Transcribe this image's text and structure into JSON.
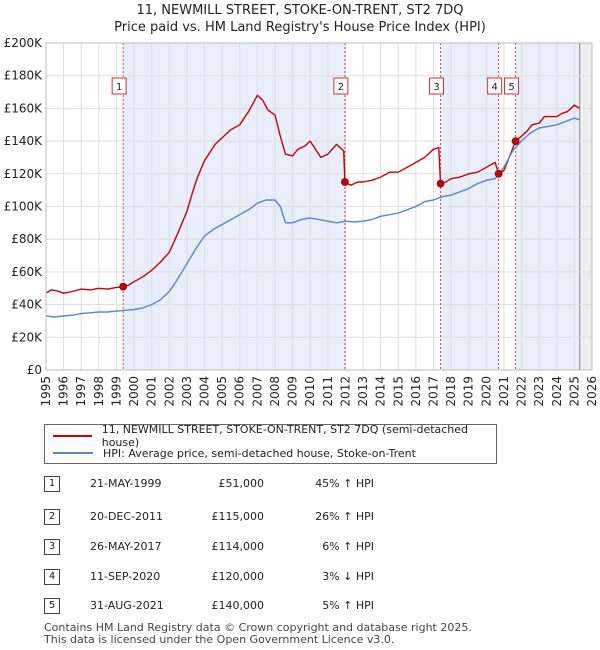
{
  "title_line1": "11, NEWMILL STREET, STOKE-ON-TRENT, ST2 7DQ",
  "title_line2": "Price paid vs. HM Land Registry's House Price Index (HPI)",
  "chart_data": {
    "type": "line",
    "x_range": [
      1995,
      2026
    ],
    "ylim": [
      0,
      200000
    ],
    "y_ticks": [
      0,
      20000,
      40000,
      60000,
      80000,
      100000,
      120000,
      140000,
      160000,
      180000,
      200000
    ],
    "y_tick_labels": [
      "£0",
      "£20K",
      "£40K",
      "£60K",
      "£80K",
      "£100K",
      "£120K",
      "£140K",
      "£160K",
      "£180K",
      "£200K"
    ],
    "x_ticks": [
      1995,
      1996,
      1997,
      1998,
      1999,
      2000,
      2001,
      2002,
      2003,
      2004,
      2005,
      2006,
      2007,
      2008,
      2009,
      2010,
      2011,
      2012,
      2013,
      2014,
      2015,
      2016,
      2017,
      2018,
      2019,
      2020,
      2021,
      2022,
      2023,
      2024,
      2025,
      2026
    ],
    "x_tick_labels": [
      "1995",
      "1996",
      "1997",
      "1998",
      "1999",
      "2000",
      "2001",
      "2002",
      "2003",
      "2004",
      "2005",
      "2006",
      "2007",
      "2008",
      "2009",
      "2010",
      "2011",
      "2012",
      "2013",
      "2014",
      "2015",
      "2016",
      "2017",
      "2018",
      "2019",
      "2020",
      "2021",
      "2022",
      "2023",
      "2024",
      "2025",
      "2026"
    ],
    "shaded_ranges": [
      [
        1999.38,
        2011.97
      ],
      [
        2017.4,
        2020.7
      ],
      [
        2021.66,
        2025.3
      ]
    ],
    "forecast_start": 2025.3,
    "series": [
      {
        "name": "11, NEWMILL STREET, STOKE-ON-TRENT, ST2 7DQ (semi-detached house)",
        "color": "#cc0000",
        "x": [
          1995.0,
          1995.3,
          1995.6,
          1996.0,
          1996.5,
          1997.0,
          1997.5,
          1998.0,
          1998.5,
          1999.0,
          1999.38,
          1999.7,
          2000.0,
          2000.5,
          2001.0,
          2001.5,
          2002.0,
          2002.5,
          2003.0,
          2003.3,
          2003.6,
          2004.0,
          2004.3,
          2004.6,
          2005.0,
          2005.5,
          2006.0,
          2006.5,
          2007.0,
          2007.3,
          2007.6,
          2008.0,
          2008.3,
          2008.6,
          2009.0,
          2009.3,
          2009.7,
          2010.0,
          2010.3,
          2010.6,
          2011.0,
          2011.5,
          2011.9,
          2011.97,
          2012.3,
          2012.7,
          2013.0,
          2013.5,
          2014.0,
          2014.5,
          2015.0,
          2015.5,
          2016.0,
          2016.5,
          2017.0,
          2017.3,
          2017.4,
          2017.7,
          2018.0,
          2018.5,
          2019.0,
          2019.5,
          2020.0,
          2020.5,
          2020.7,
          2021.0,
          2021.3,
          2021.66,
          2022.0,
          2022.3,
          2022.6,
          2023.0,
          2023.3,
          2023.6,
          2024.0,
          2024.3,
          2024.6,
          2025.0,
          2025.3
        ],
        "y": [
          47000,
          49000,
          48500,
          47000,
          48000,
          49500,
          49000,
          50000,
          49500,
          50500,
          51000,
          52000,
          54000,
          57000,
          61000,
          66000,
          72000,
          84000,
          97000,
          108000,
          118000,
          128000,
          133000,
          138000,
          142000,
          147000,
          150000,
          158000,
          168000,
          165000,
          159000,
          156000,
          143000,
          132000,
          131000,
          135000,
          137000,
          140000,
          135000,
          130000,
          132000,
          138000,
          134000,
          115000,
          113000,
          115000,
          115000,
          116000,
          118000,
          121000,
          121000,
          124000,
          127000,
          130000,
          135000,
          136000,
          114000,
          115000,
          117000,
          118000,
          120000,
          121000,
          124000,
          127000,
          120000,
          122000,
          130000,
          140000,
          143000,
          146000,
          150000,
          151000,
          155000,
          155000,
          155000,
          157000,
          158000,
          162000,
          160000
        ]
      },
      {
        "name": "HPI: Average price, semi-detached house, Stoke-on-Trent",
        "color": "#5588cc",
        "x": [
          1995.0,
          1995.5,
          1996.0,
          1996.5,
          1997.0,
          1997.5,
          1998.0,
          1998.5,
          1999.0,
          1999.5,
          2000.0,
          2000.5,
          2001.0,
          2001.5,
          2002.0,
          2002.5,
          2003.0,
          2003.5,
          2004.0,
          2004.5,
          2005.0,
          2005.5,
          2006.0,
          2006.5,
          2007.0,
          2007.5,
          2008.0,
          2008.3,
          2008.6,
          2009.0,
          2009.5,
          2010.0,
          2010.5,
          2011.0,
          2011.5,
          2012.0,
          2012.5,
          2013.0,
          2013.5,
          2014.0,
          2014.5,
          2015.0,
          2015.5,
          2016.0,
          2016.5,
          2017.0,
          2017.5,
          2018.0,
          2018.5,
          2019.0,
          2019.5,
          2020.0,
          2020.5,
          2021.0,
          2021.5,
          2022.0,
          2022.5,
          2023.0,
          2023.5,
          2024.0,
          2024.5,
          2025.0,
          2025.3
        ],
        "y": [
          33000,
          32500,
          33000,
          33500,
          34500,
          35000,
          35500,
          35500,
          36000,
          36500,
          37000,
          38000,
          40000,
          43000,
          48000,
          56000,
          65000,
          74000,
          82000,
          86000,
          89000,
          92000,
          95000,
          98000,
          102000,
          104000,
          104000,
          100000,
          90000,
          90000,
          92000,
          93000,
          92000,
          91000,
          90000,
          91000,
          90500,
          91000,
          92000,
          94000,
          95000,
          96000,
          98000,
          100000,
          103000,
          104000,
          106000,
          107000,
          109000,
          111000,
          114000,
          116000,
          117000,
          124000,
          134000,
          140000,
          145000,
          148000,
          149000,
          150000,
          152000,
          154000,
          153000
        ]
      }
    ],
    "sales": [
      {
        "label": "1",
        "x": 1999.38,
        "y": 51000
      },
      {
        "label": "2",
        "x": 2011.97,
        "y": 115000
      },
      {
        "label": "3",
        "x": 2017.4,
        "y": 114000
      },
      {
        "label": "4",
        "x": 2020.7,
        "y": 120000
      },
      {
        "label": "5",
        "x": 2021.66,
        "y": 140000
      }
    ]
  },
  "legend": {
    "property": "11, NEWMILL STREET, STOKE-ON-TRENT, ST2 7DQ (semi-detached house)",
    "hpi": "HPI: Average price, semi-detached house, Stoke-on-Trent",
    "property_color": "#cc0000",
    "hpi_color": "#5588cc"
  },
  "sales_table": [
    {
      "num": "1",
      "date": "21-MAY-1999",
      "price": "£51,000",
      "hpi": "45% ↑ HPI"
    },
    {
      "num": "2",
      "date": "20-DEC-2011",
      "price": "£115,000",
      "hpi": "26% ↑ HPI"
    },
    {
      "num": "3",
      "date": "26-MAY-2017",
      "price": "£114,000",
      "hpi": "6% ↑ HPI"
    },
    {
      "num": "4",
      "date": "11-SEP-2020",
      "price": "£120,000",
      "hpi": "3% ↓ HPI"
    },
    {
      "num": "5",
      "date": "31-AUG-2021",
      "price": "£140,000",
      "hpi": "5% ↑ HPI"
    }
  ],
  "footer_line1": "Contains HM Land Registry data © Crown copyright and database right 2025.",
  "footer_line2": "This data is licensed under the Open Government Licence v3.0."
}
